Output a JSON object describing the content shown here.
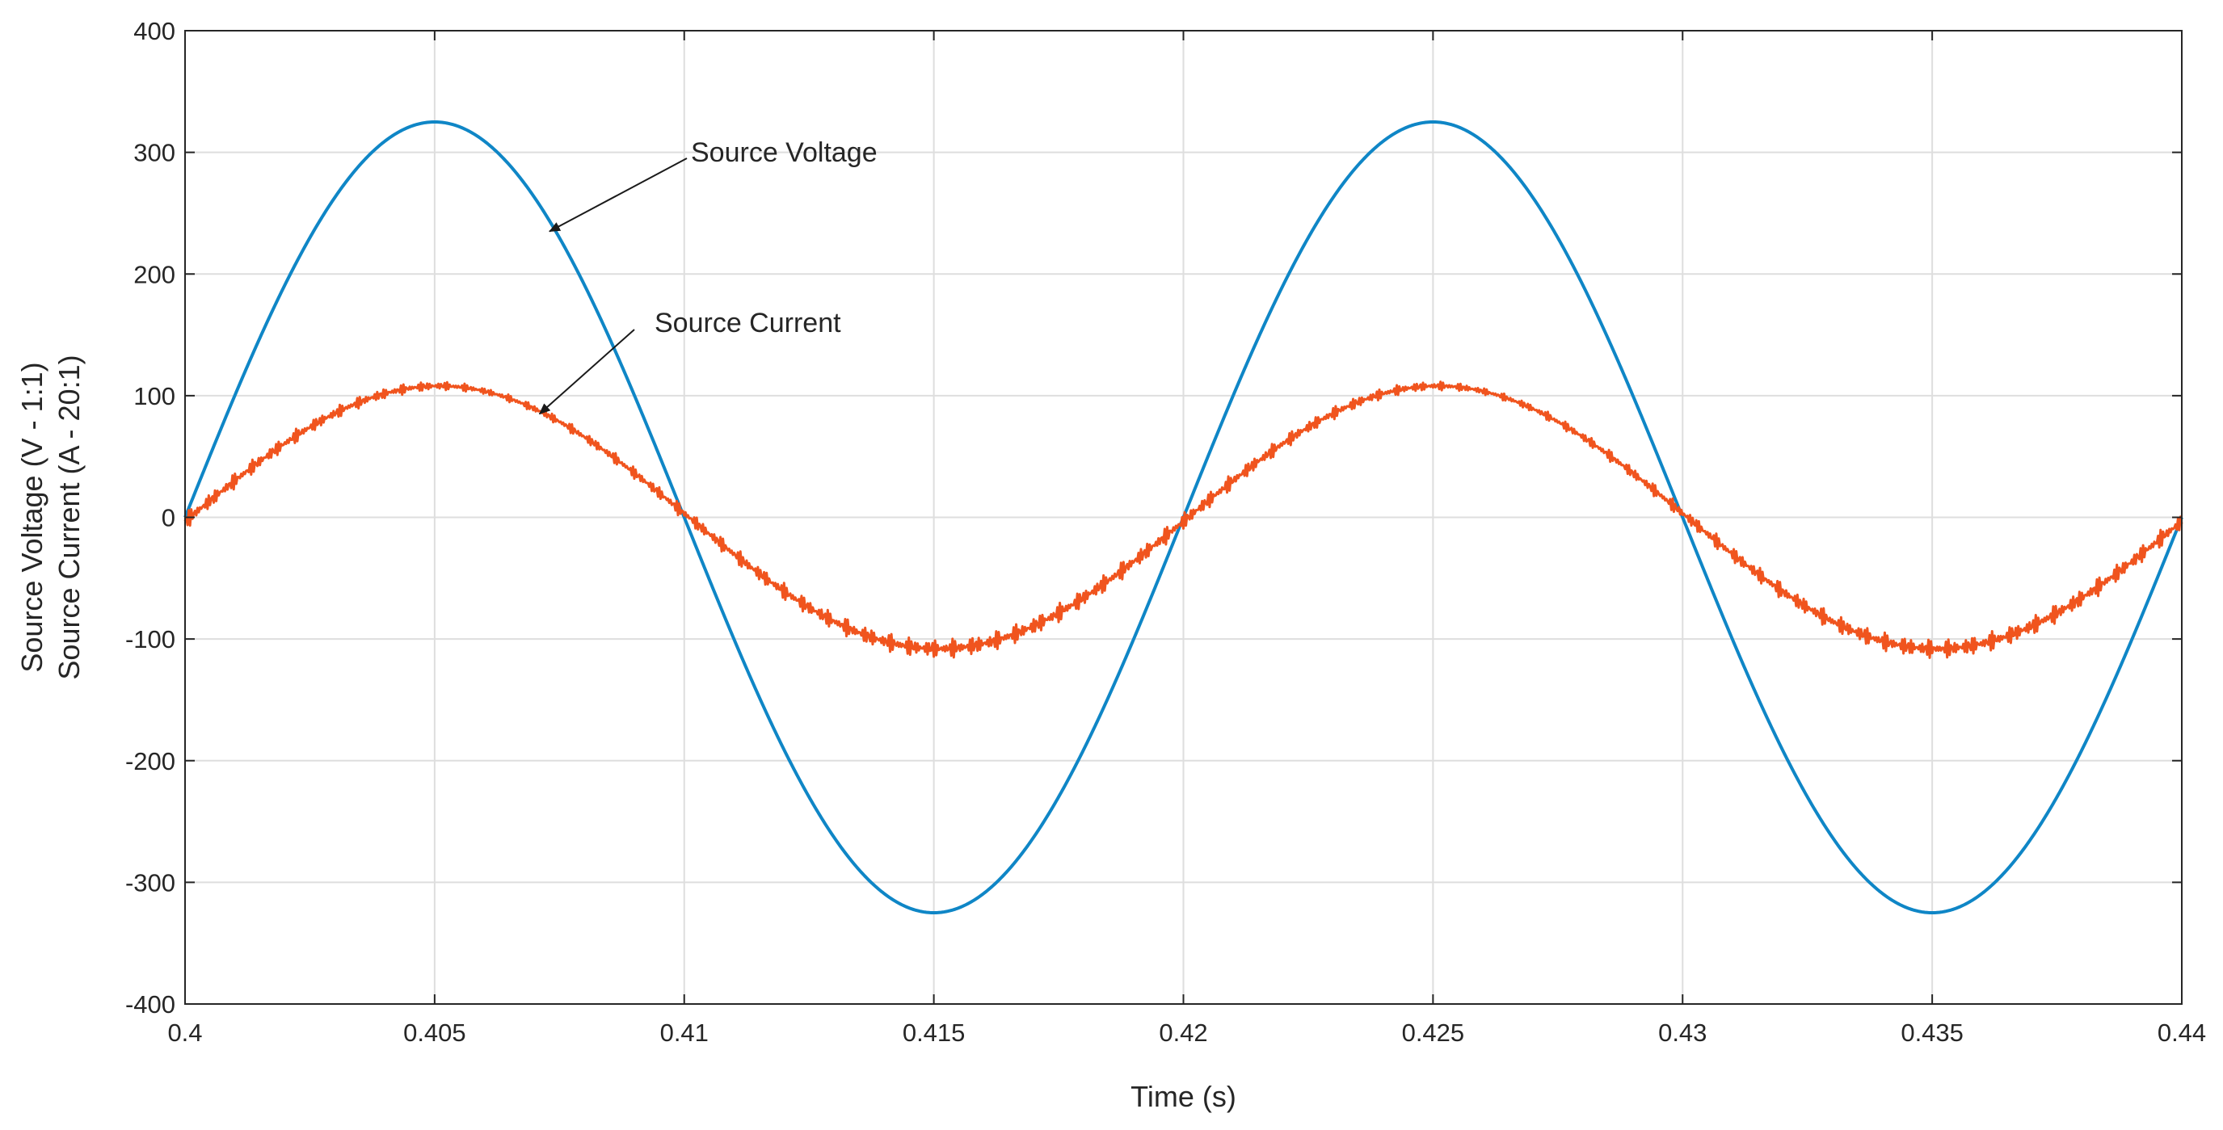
{
  "chart_data": {
    "type": "line",
    "title": "",
    "xlabel": "Time (s)",
    "ylabel_lines": [
      "Source Voltage (V - 1:1)",
      "Source Current (A - 20:1)"
    ],
    "xlim": [
      0.4,
      0.44
    ],
    "ylim": [
      -400,
      400
    ],
    "xticks": [
      0.4,
      0.405,
      0.41,
      0.415,
      0.42,
      0.425,
      0.43,
      0.435,
      0.44
    ],
    "xtick_labels": [
      "0.4",
      "0.405",
      "0.41",
      "0.415",
      "0.42",
      "0.425",
      "0.43",
      "0.435",
      "0.44"
    ],
    "yticks": [
      -400,
      -300,
      -200,
      -100,
      0,
      100,
      200,
      300,
      400
    ],
    "ytick_labels": [
      "-400",
      "-300",
      "-200",
      "-100",
      "0",
      "100",
      "200",
      "300",
      "400"
    ],
    "grid": true,
    "legend": "none",
    "series": [
      {
        "name": "Source Voltage",
        "color": "#0f86c6",
        "frequency_hz": 50,
        "amplitude": 325,
        "x": [
          0.4,
          0.4025,
          0.405,
          0.4075,
          0.41,
          0.4125,
          0.415,
          0.4175,
          0.42,
          0.4225,
          0.425,
          0.4275,
          0.43,
          0.4325,
          0.435,
          0.4375,
          0.44
        ],
        "y": [
          0,
          230,
          325,
          230,
          0,
          -230,
          -325,
          -230,
          0,
          230,
          325,
          230,
          0,
          -230,
          -325,
          -230,
          0
        ]
      },
      {
        "name": "Source Current",
        "color": "#f0541e",
        "frequency_hz": 50,
        "amplitude": 108,
        "ripple_peak": 8,
        "x": [
          0.4,
          0.4025,
          0.405,
          0.4075,
          0.41,
          0.4125,
          0.415,
          0.4175,
          0.42,
          0.4225,
          0.425,
          0.4275,
          0.43,
          0.4325,
          0.435,
          0.4375,
          0.44
        ],
        "y": [
          -5,
          70,
          108,
          78,
          0,
          -78,
          -110,
          -78,
          -10,
          70,
          108,
          78,
          0,
          -78,
          -110,
          -78,
          -5
        ]
      }
    ],
    "annotations": [
      {
        "text": "Source Voltage",
        "arrow_to": [
          0.4073,
          235
        ]
      },
      {
        "text": "Source Current",
        "arrow_to": [
          0.4071,
          85
        ]
      }
    ]
  }
}
